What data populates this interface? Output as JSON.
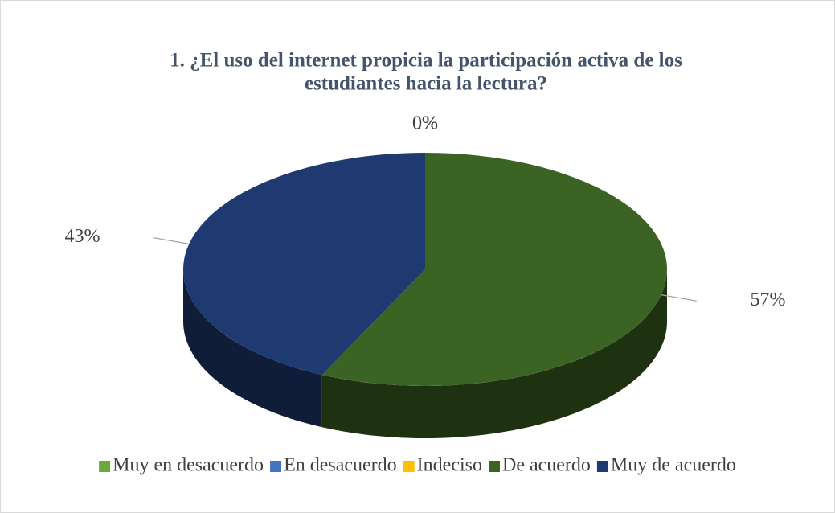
{
  "chart_data": {
    "type": "pie",
    "title": [
      "1. ¿El uso del internet propicia la participación activa de los",
      "estudiantes hacia la lectura?"
    ],
    "categories": [
      "Muy en desacuerdo",
      "En desacuerdo",
      "Indeciso",
      "De acuerdo",
      "Muy de acuerdo"
    ],
    "values": [
      0,
      0,
      0,
      57,
      43
    ],
    "value_labels": [
      "0%",
      "0%",
      "0%",
      "57%",
      "43%"
    ],
    "colors": [
      "#6aaa3a",
      "#4472c4",
      "#ffc000",
      "#3b6424",
      "#1f3a70"
    ],
    "legend": "bottom"
  }
}
